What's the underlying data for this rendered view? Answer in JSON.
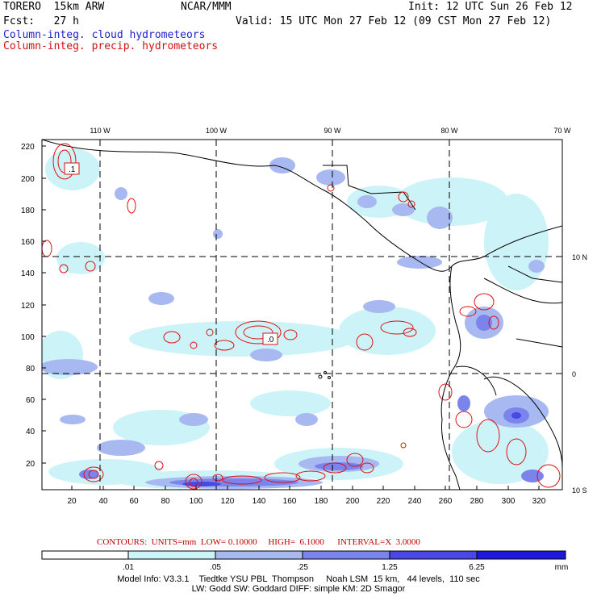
{
  "header": {
    "model": "TORERO  15km ARW",
    "org": "NCAR/MMM",
    "init": "Init: 12 UTC Sun 26 Feb 12",
    "fcst": "Fcst:   27 h",
    "valid": "Valid: 15 UTC Mon 27 Feb 12 (09 CST Mon 27 Feb 12)",
    "field1": "Column-integ. cloud hydrometeors",
    "field2": "Column-integ. precip. hydrometeors"
  },
  "colors": {
    "field1": "#2020d0",
    "field2": "#d01010",
    "precip_contour": "#e01010",
    "grid_dash": "#000000"
  },
  "map": {
    "top_ticks": [
      "110 W",
      "100 W",
      "90 W",
      "80 W",
      "70 W"
    ],
    "right_ticks": [
      "10 N",
      "0",
      "10 S"
    ],
    "y_ticks": [
      "220",
      "200",
      "180",
      "160",
      "140",
      "120",
      "100",
      "80",
      "60",
      "40",
      "20"
    ],
    "x_ticks": [
      "20",
      "40",
      "60",
      "80",
      "100",
      "120",
      "140",
      "160",
      "180",
      "200",
      "220",
      "240",
      "260",
      "280",
      "300",
      "320"
    ],
    "box_labels": [
      ".1",
      ".0"
    ]
  },
  "contours_info": {
    "text": "CONTOURS:  UNITS=mm  LOW= 0.10000     HIGH=  6.1000      INTERVAL=X  3.0000"
  },
  "colorbar": {
    "labels": [
      ".01",
      ".05",
      ".25",
      "1.25",
      "6.25"
    ],
    "unit": "mm",
    "colors": [
      "#ffffff",
      "#ccf4f8",
      "#a8b8f0",
      "#7a84ec",
      "#4a48e4",
      "#1c18dc"
    ]
  },
  "model_info": {
    "line1": "Model Info: V3.3.1    Tiedtke YSU PBL  Thompson     Noah LSM  15 km,   44 levels,  110 sec",
    "line2": "LW: Godd SW: Goddard DIFF: simple KM: 2D Smagor"
  }
}
